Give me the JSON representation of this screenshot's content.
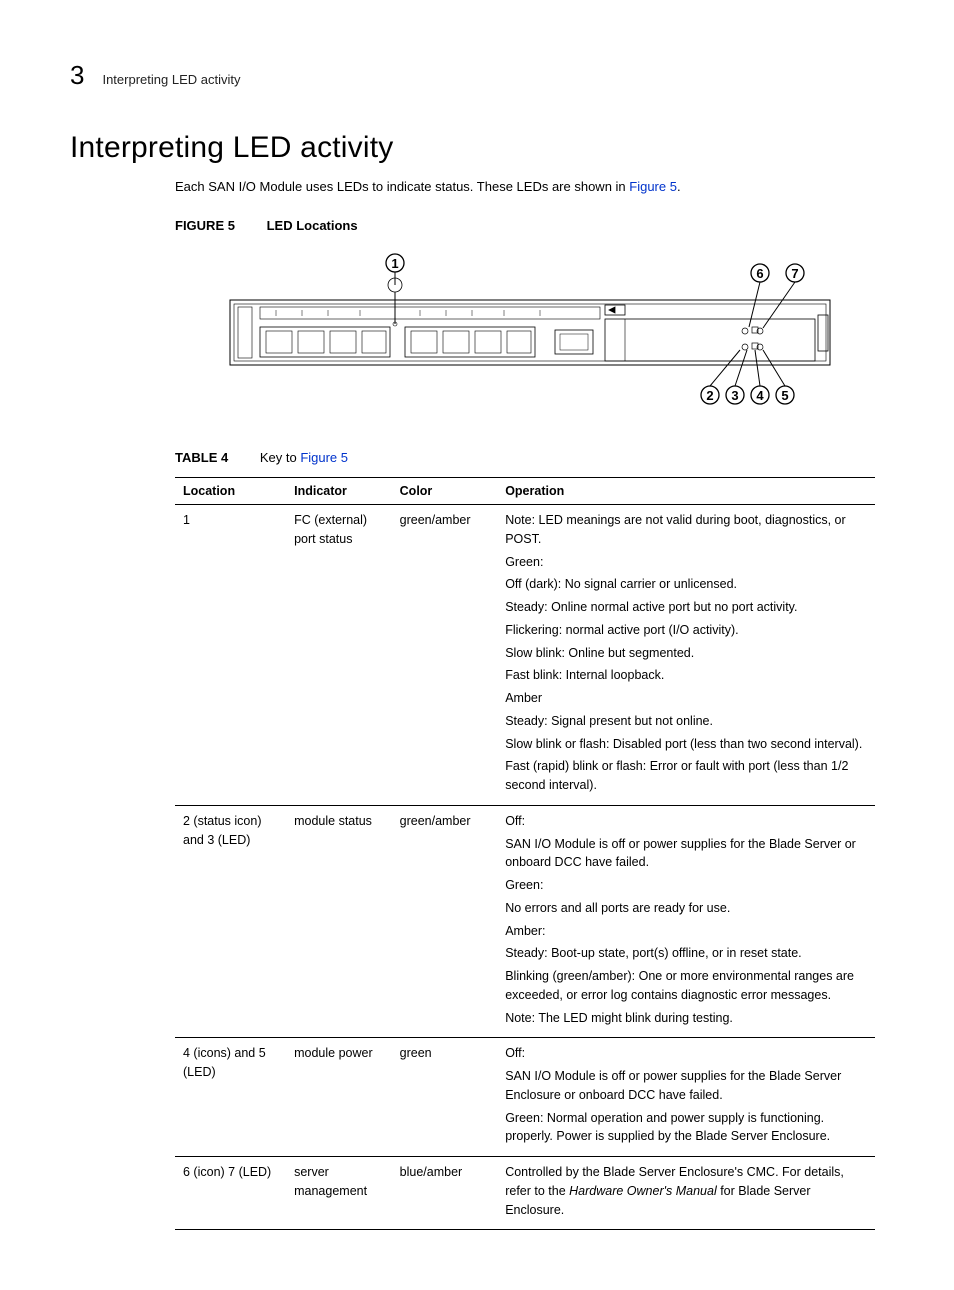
{
  "header": {
    "chapter_number": "3",
    "running_title": "Interpreting LED activity"
  },
  "title": "Interpreting LED activity",
  "intro_pre": "Each SAN I/O Module uses LEDs to indicate status. These LEDs are shown in ",
  "intro_link": "Figure 5",
  "intro_post": ".",
  "figure": {
    "label": "FIGURE 5",
    "caption": "LED Locations",
    "callouts": [
      "1",
      "2",
      "3",
      "4",
      "5",
      "6",
      "7"
    ]
  },
  "table": {
    "label": "TABLE 4",
    "caption_pre": "Key to ",
    "caption_link": "Figure 5",
    "headers": [
      "Location",
      "Indicator",
      "Color",
      "Operation"
    ],
    "rows": [
      {
        "location": "1",
        "indicator": "FC (external) port status",
        "color": "green/amber",
        "operation": [
          "Note: LED meanings are not valid during boot, diagnostics, or POST.",
          "Green:",
          "Off (dark): No signal carrier or unlicensed.",
          "Steady: Online normal active port but no port activity.",
          "Flickering: normal active port (I/O activity).",
          "Slow blink: Online but segmented.",
          "Fast blink: Internal loopback.",
          "Amber",
          "Steady: Signal present but not online.",
          "Slow blink or flash: Disabled port (less than two second interval).",
          "Fast (rapid) blink or flash: Error or fault with port (less than 1/2 second interval)."
        ]
      },
      {
        "location": "2 (status icon) and 3 (LED)",
        "indicator": "module status",
        "color": "green/amber",
        "operation": [
          "Off:",
          "SAN I/O Module is off or power supplies for the Blade Server or onboard DCC have failed.",
          "Green:",
          "No errors and all ports are ready for use.",
          "Amber:",
          "Steady: Boot-up state, port(s) offline, or in reset state.",
          "Blinking (green/amber): One or more environmental ranges are exceeded, or error log contains diagnostic error messages.",
          "Note: The LED might blink during testing."
        ]
      },
      {
        "location": "4 (icons) and 5 (LED)",
        "indicator": "module power",
        "color": "green",
        "operation": [
          "Off:",
          "SAN I/O Module is off or power supplies for the Blade Server Enclosure or onboard DCC have failed.",
          "Green: Normal operation and power supply is functioning. properly. Power is supplied by the Blade Server Enclosure."
        ]
      },
      {
        "location": "6 (icon) 7 (LED)",
        "indicator": "server management",
        "color": "blue/amber",
        "operation_html": "Controlled by the Blade Server Enclosure's CMC. For details, refer to the <span class=\"italic\">Hardware Owner's Manual</span> for Blade Server Enclosure."
      }
    ]
  },
  "diagram_style": {
    "stroke": "#000000",
    "stroke_width": 1,
    "callout_radius": 9,
    "callout_font_size": 13,
    "callout_font_weight": "700"
  }
}
